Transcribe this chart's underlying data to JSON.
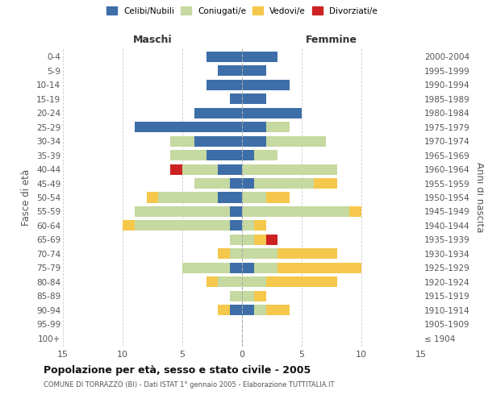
{
  "age_groups": [
    "100+",
    "95-99",
    "90-94",
    "85-89",
    "80-84",
    "75-79",
    "70-74",
    "65-69",
    "60-64",
    "55-59",
    "50-54",
    "45-49",
    "40-44",
    "35-39",
    "30-34",
    "25-29",
    "20-24",
    "15-19",
    "10-14",
    "5-9",
    "0-4"
  ],
  "birth_years": [
    "≤ 1904",
    "1905-1909",
    "1910-1914",
    "1915-1919",
    "1920-1924",
    "1925-1929",
    "1930-1934",
    "1935-1939",
    "1940-1944",
    "1945-1949",
    "1950-1954",
    "1955-1959",
    "1960-1964",
    "1965-1969",
    "1970-1974",
    "1975-1979",
    "1980-1984",
    "1985-1989",
    "1990-1994",
    "1995-1999",
    "2000-2004"
  ],
  "male": {
    "celibi": [
      0,
      0,
      1,
      0,
      0,
      1,
      0,
      0,
      1,
      1,
      2,
      1,
      2,
      3,
      4,
      9,
      4,
      1,
      3,
      2,
      3
    ],
    "coniugati": [
      0,
      0,
      0,
      1,
      2,
      4,
      1,
      1,
      8,
      8,
      5,
      3,
      3,
      3,
      2,
      0,
      0,
      0,
      0,
      0,
      0
    ],
    "vedovi": [
      0,
      0,
      1,
      0,
      1,
      0,
      1,
      0,
      1,
      0,
      1,
      0,
      0,
      0,
      0,
      0,
      0,
      0,
      0,
      0,
      0
    ],
    "divorziati": [
      0,
      0,
      0,
      0,
      0,
      0,
      0,
      0,
      0,
      0,
      0,
      0,
      1,
      0,
      0,
      0,
      0,
      0,
      0,
      0,
      0
    ]
  },
  "female": {
    "nubili": [
      0,
      0,
      1,
      0,
      0,
      1,
      0,
      0,
      0,
      0,
      0,
      1,
      0,
      1,
      2,
      2,
      5,
      2,
      4,
      2,
      3
    ],
    "coniugate": [
      0,
      0,
      1,
      1,
      2,
      2,
      3,
      1,
      1,
      9,
      2,
      5,
      8,
      2,
      5,
      2,
      0,
      0,
      0,
      0,
      0
    ],
    "vedove": [
      0,
      0,
      2,
      1,
      6,
      7,
      5,
      1,
      1,
      1,
      2,
      2,
      0,
      0,
      0,
      0,
      0,
      0,
      0,
      0,
      0
    ],
    "divorziate": [
      0,
      0,
      0,
      0,
      0,
      0,
      0,
      1,
      0,
      0,
      0,
      0,
      0,
      0,
      0,
      0,
      0,
      0,
      0,
      0,
      0
    ]
  },
  "colors": {
    "celibi": "#3d6ea8",
    "coniugati": "#c5d9a0",
    "vedovi": "#f5c84c",
    "divorziati": "#cc2222"
  },
  "xlim": 15,
  "title": "Popolazione per età, sesso e stato civile - 2005",
  "subtitle": "COMUNE DI TORRAZZO (BI) - Dati ISTAT 1° gennaio 2005 - Elaborazione TUTTITALIA.IT",
  "ylabel_left": "Fasce di età",
  "ylabel_right": "Anni di nascita",
  "xlabel_left": "Maschi",
  "xlabel_right": "Femmine"
}
